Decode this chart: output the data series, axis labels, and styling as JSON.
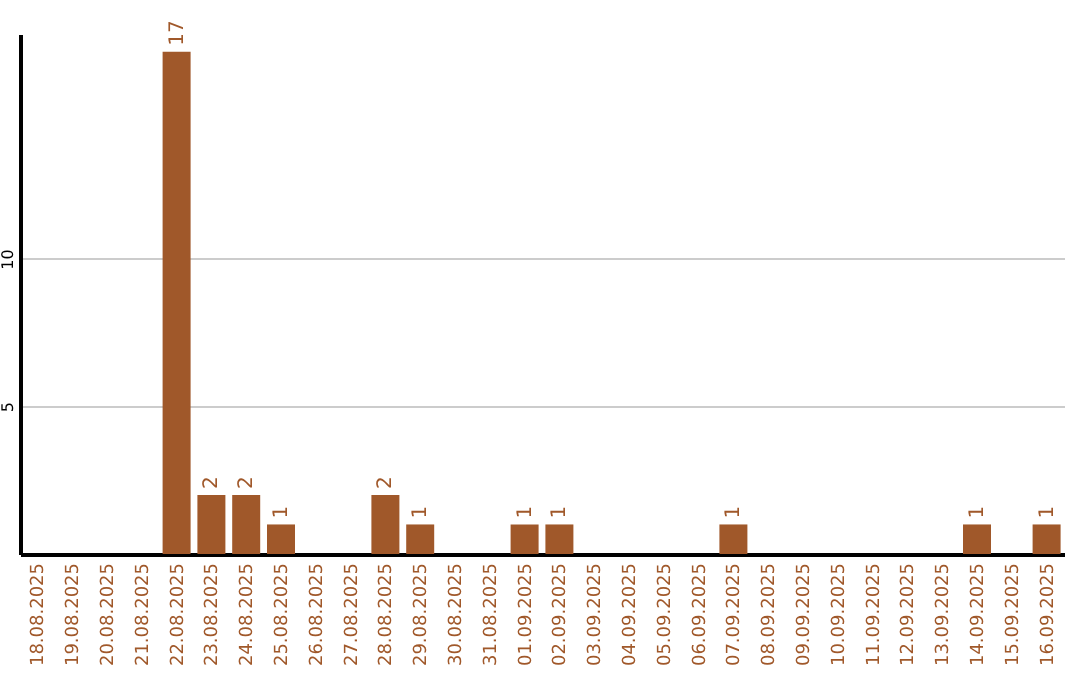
{
  "chart_data": {
    "type": "bar",
    "categories": [
      "18.08.2025",
      "19.08.2025",
      "20.08.2025",
      "21.08.2025",
      "22.08.2025",
      "23.08.2025",
      "24.08.2025",
      "25.08.2025",
      "26.08.2025",
      "27.08.2025",
      "28.08.2025",
      "29.08.2025",
      "30.08.2025",
      "31.08.2025",
      "01.09.2025",
      "02.09.2025",
      "03.09.2025",
      "04.09.2025",
      "05.09.2025",
      "06.09.2025",
      "07.09.2025",
      "08.09.2025",
      "09.09.2025",
      "10.09.2025",
      "11.09.2025",
      "12.09.2025",
      "13.09.2025",
      "14.09.2025",
      "15.09.2025",
      "16.09.2025"
    ],
    "values": [
      0,
      0,
      0,
      0,
      17,
      2,
      2,
      1,
      0,
      0,
      2,
      1,
      0,
      0,
      1,
      1,
      0,
      0,
      0,
      0,
      1,
      0,
      0,
      0,
      0,
      0,
      0,
      1,
      0,
      1
    ],
    "value_labels": [
      null,
      null,
      null,
      null,
      "17",
      "2",
      "2",
      "1",
      null,
      null,
      "2",
      "1",
      null,
      null,
      "1",
      "1",
      null,
      null,
      null,
      null,
      "1",
      null,
      null,
      null,
      null,
      null,
      null,
      "1",
      null,
      "1"
    ],
    "color": "#a0582a",
    "ylim": [
      0,
      17.6
    ],
    "yticks": [
      5,
      10
    ],
    "grid": "y"
  }
}
